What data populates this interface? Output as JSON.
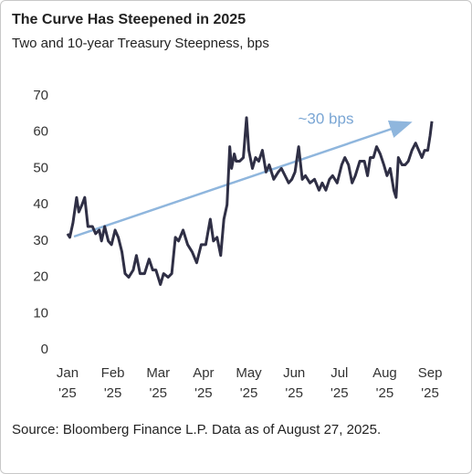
{
  "chart_data": {
    "type": "line",
    "title": "The Curve Has Steepened in 2025",
    "subtitle": "Two and 10-year Treasury Steepness, bps",
    "source": "Source: Bloomberg Finance L.P. Data as of August 27, 2025.",
    "annotation": "~30 bps",
    "xlim": [
      -0.1,
      8.2
    ],
    "xticks": [
      {
        "value": 0,
        "label": "Jan '25"
      },
      {
        "value": 1,
        "label": "Feb '25"
      },
      {
        "value": 2,
        "label": "Mar '25"
      },
      {
        "value": 3,
        "label": "Apr '25"
      },
      {
        "value": 4,
        "label": "May '25"
      },
      {
        "value": 5,
        "label": "Jun '25"
      },
      {
        "value": 6,
        "label": "Jul '25"
      },
      {
        "value": 7,
        "label": "Aug '25"
      },
      {
        "value": 8,
        "label": "Sep '25"
      }
    ],
    "ylim": [
      0,
      70
    ],
    "yticks": [
      0,
      10,
      20,
      30,
      40,
      50,
      60,
      70
    ],
    "grid": false,
    "series": [
      {
        "name": "Steepness",
        "color": "#2f2f45",
        "x": [
          0.0,
          0.05,
          0.12,
          0.2,
          0.25,
          0.32,
          0.38,
          0.45,
          0.55,
          0.62,
          0.7,
          0.75,
          0.82,
          0.9,
          0.97,
          1.05,
          1.12,
          1.2,
          1.27,
          1.35,
          1.45,
          1.52,
          1.6,
          1.7,
          1.8,
          1.88,
          1.95,
          2.05,
          2.12,
          2.22,
          2.3,
          2.38,
          2.45,
          2.55,
          2.65,
          2.75,
          2.85,
          2.95,
          3.05,
          3.15,
          3.22,
          3.3,
          3.38,
          3.45,
          3.52,
          3.58,
          3.62,
          3.68,
          3.72,
          3.8,
          3.88,
          3.95,
          4.0,
          4.08,
          4.15,
          4.22,
          4.3,
          4.38,
          4.45,
          4.55,
          4.65,
          4.72,
          4.8,
          4.88,
          4.95,
          5.02,
          5.1,
          5.18,
          5.25,
          5.35,
          5.45,
          5.55,
          5.62,
          5.7,
          5.78,
          5.85,
          5.95,
          6.05,
          6.12,
          6.2,
          6.28,
          6.35,
          6.45,
          6.55,
          6.62,
          6.68,
          6.75,
          6.82,
          6.9,
          6.98,
          7.05,
          7.12,
          7.2,
          7.25,
          7.3,
          7.38,
          7.45,
          7.52,
          7.6,
          7.68,
          7.75,
          7.82,
          7.88,
          7.95,
          8.0,
          8.04
        ],
        "values": [
          32,
          31,
          35,
          42,
          38,
          40,
          42,
          34,
          34,
          32,
          33,
          30,
          34,
          30,
          29,
          33,
          31,
          27,
          21,
          20,
          22,
          26,
          21,
          21,
          25,
          22,
          22,
          18,
          21,
          20,
          21,
          31,
          30,
          33,
          29,
          27,
          24,
          29,
          29,
          36,
          30,
          31,
          26,
          36,
          40,
          56,
          50,
          54,
          52,
          52,
          53,
          64,
          55,
          50,
          53,
          52,
          55,
          49,
          51,
          47,
          49,
          50,
          48,
          46,
          47,
          49,
          56,
          47,
          48,
          46,
          47,
          44,
          46,
          44,
          47,
          48,
          46,
          51,
          53,
          51,
          46,
          48,
          52,
          52,
          48,
          53,
          53,
          56,
          54,
          51,
          48,
          50,
          44,
          42,
          53,
          51,
          51,
          52,
          55,
          57,
          55,
          53,
          55,
          55,
          59,
          63
        ]
      }
    ]
  }
}
